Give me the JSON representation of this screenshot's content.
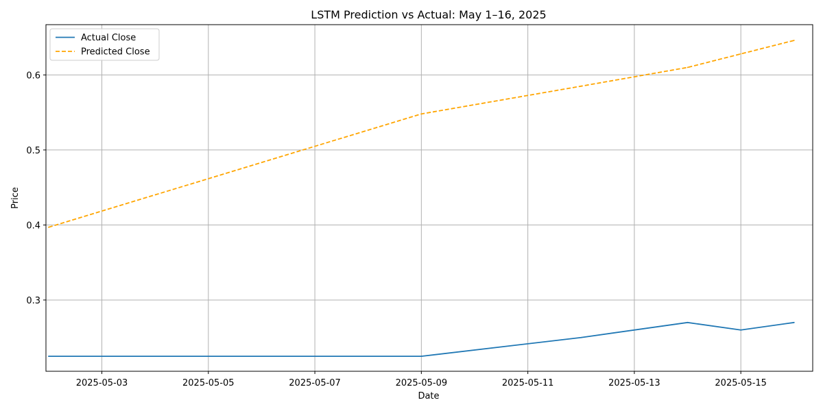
{
  "chart_data": {
    "type": "line",
    "title": "LSTM Prediction vs Actual: May 1–16, 2025",
    "xlabel": "Date",
    "ylabel": "Price",
    "x": [
      "2025-05-02",
      "2025-05-09",
      "2025-05-12",
      "2025-05-14",
      "2025-05-15",
      "2025-05-16"
    ],
    "x_ticks": [
      "2025-05-03",
      "2025-05-05",
      "2025-05-07",
      "2025-05-09",
      "2025-05-11",
      "2025-05-13",
      "2025-05-15"
    ],
    "y_ticks": [
      "0.3",
      "0.4",
      "0.5",
      "0.6"
    ],
    "xlim": [
      "2025-05-01",
      "2025-05-16"
    ],
    "ylim": [
      0.205,
      0.667
    ],
    "grid": true,
    "legend_position": "top-left",
    "series": [
      {
        "name": "Actual Close",
        "color": "#1f77b4",
        "style": "solid",
        "values": [
          0.225,
          0.225,
          0.25,
          0.27,
          0.26,
          0.27
        ]
      },
      {
        "name": "Predicted Close",
        "color": "#ffa500",
        "style": "dashed",
        "values": [
          0.397,
          0.548,
          0.585,
          0.61,
          0.628,
          0.646
        ]
      }
    ]
  }
}
